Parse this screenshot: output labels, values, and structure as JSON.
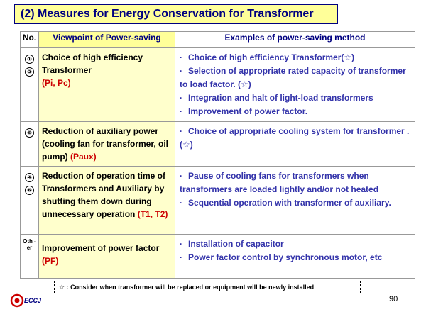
{
  "title": "(2) Measures for Energy Conservation for Transformer",
  "headers": {
    "no": "No.",
    "viewpoint": "Viewpoint of Power-saving",
    "examples": "Examples of power-saving method"
  },
  "rows": [
    {
      "nums": [
        "①",
        "②"
      ],
      "viewpoint": "Choice of high efficiency Transformer",
      "symbol": "(Pi, Pc)",
      "examples": [
        "Choice of high efficiency Transformer(☆)",
        "Selection of appropriate rated capacity of transformer to load factor. (☆)",
        "Integration and halt of light-load transformers",
        "Improvement of power factor."
      ]
    },
    {
      "nums": [
        "⑤"
      ],
      "viewpoint": "Reduction of auxiliary power (cooling fan for transformer, oil pump)",
      "symbol": "(Paux)",
      "examples": [
        "Choice of appropriate cooling system for transformer .(☆)"
      ]
    },
    {
      "nums": [
        "④",
        "⑥"
      ],
      "viewpoint": "Reduction of operation time of Transformers and Auxiliary by shutting them down during unnecessary operation",
      "symbol": "(T1, T2)",
      "examples": [
        "Pause of cooling fans for transformers when transformers are loaded lightly and/or not heated",
        "Sequential operation with transformer of auxiliary."
      ]
    },
    {
      "nums": [
        "Oth -er"
      ],
      "viewpoint": "Improvement of power factor",
      "symbol": "(PF)",
      "examples": [
        "Installation of capacitor",
        "Power factor control by synchronous motor, etc"
      ]
    }
  ],
  "note": "☆ : Consider when transformer will be replaced or equipment will be newly installed",
  "logo_text": "ECCJ",
  "page_number": "90"
}
